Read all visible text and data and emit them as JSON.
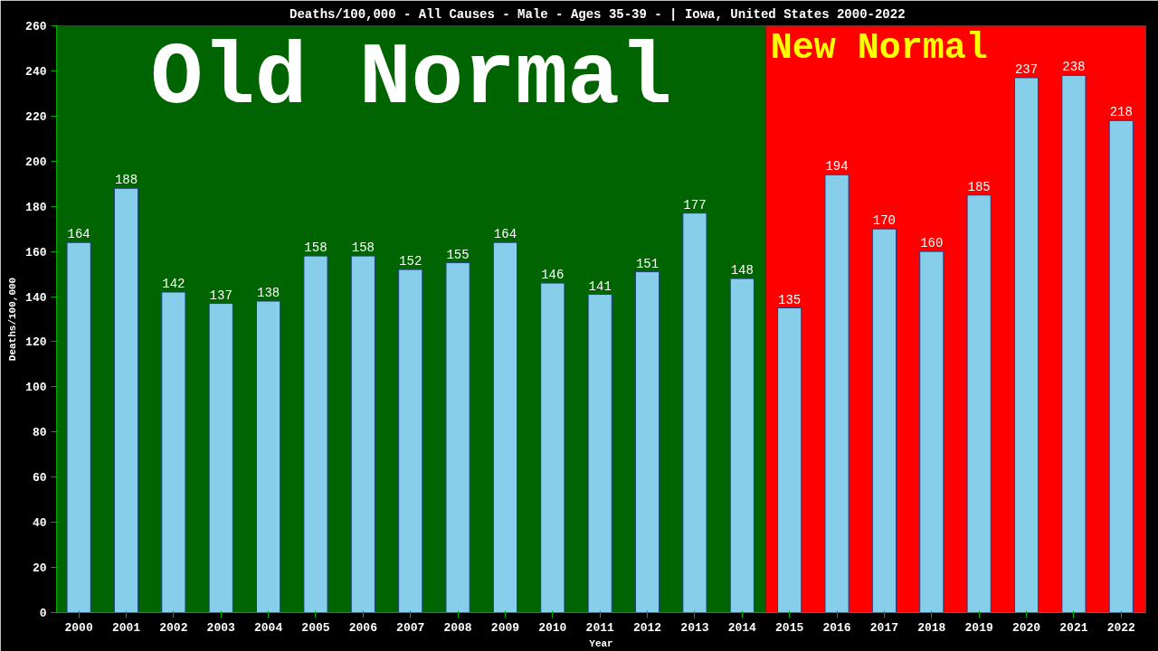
{
  "chart_data": {
    "type": "bar",
    "title": "Deaths/100,000 - All Causes - Male - Ages 35-39 -  | Iowa, United States 2000-2022",
    "xlabel": "Year",
    "ylabel": "Deaths/100,000",
    "categories": [
      "2000",
      "2001",
      "2002",
      "2003",
      "2004",
      "2005",
      "2006",
      "2007",
      "2008",
      "2009",
      "2010",
      "2011",
      "2012",
      "2013",
      "2014",
      "2015",
      "2016",
      "2017",
      "2018",
      "2019",
      "2020",
      "2021",
      "2022"
    ],
    "values": [
      164,
      188,
      142,
      137,
      138,
      158,
      158,
      152,
      155,
      164,
      146,
      141,
      151,
      177,
      148,
      135,
      194,
      170,
      160,
      185,
      237,
      238,
      218
    ],
    "color": "#87ceeb",
    "data_labels": true,
    "ylim": [
      0,
      260
    ],
    "yticks": [
      0,
      20,
      40,
      60,
      80,
      100,
      120,
      140,
      160,
      180,
      200,
      220,
      240,
      260
    ],
    "grid": false,
    "bands": [
      {
        "axis": "x",
        "from": "2000",
        "to": "2014",
        "label": "Old Normal",
        "color": "#006400"
      },
      {
        "axis": "x",
        "from": "2015",
        "to": "2022",
        "label": "New Normal",
        "color": "#ff0000"
      }
    ]
  }
}
